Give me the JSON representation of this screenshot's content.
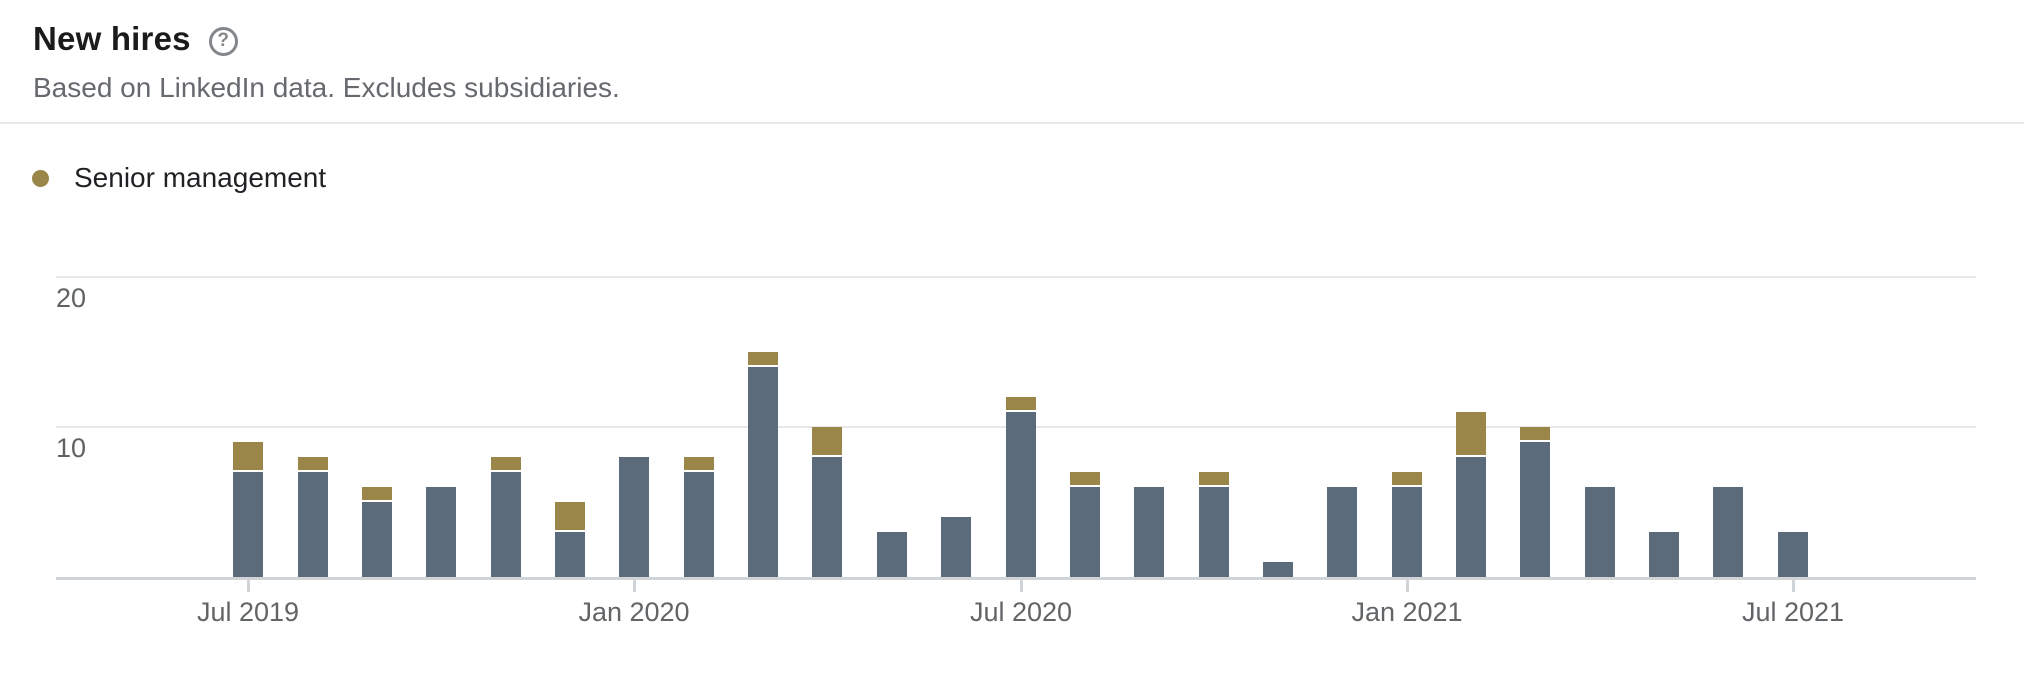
{
  "header": {
    "title": "New hires",
    "help_icon": "?",
    "subtitle": "Based on LinkedIn data. Excludes subsidiaries."
  },
  "legend": {
    "items": [
      {
        "label": "Senior management",
        "color": "#9a8648"
      }
    ]
  },
  "chart_data": {
    "type": "bar",
    "stacked": true,
    "title": "New hires",
    "categories": [
      "Jul 2019",
      "Aug 2019",
      "Sep 2019",
      "Oct 2019",
      "Nov 2019",
      "Dec 2019",
      "Jan 2020",
      "Feb 2020",
      "Mar 2020",
      "Apr 2020",
      "May 2020",
      "Jun 2020",
      "Jul 2020",
      "Aug 2020",
      "Sep 2020",
      "Oct 2020",
      "Nov 2020",
      "Dec 2020",
      "Jan 2021",
      "Feb 2021",
      "Mar 2021",
      "Apr 2021",
      "May 2021",
      "Jun 2021",
      "Jul 2021"
    ],
    "series": [
      {
        "name": "New hires (total bar height)",
        "color": "#5c6b7c",
        "values": [
          9,
          8,
          6,
          6,
          8,
          5,
          8,
          8,
          15,
          10,
          3,
          4,
          12,
          7,
          6,
          7,
          1,
          6,
          7,
          11,
          10,
          6,
          3,
          6,
          3
        ]
      },
      {
        "name": "Senior management",
        "color": "#9a8648",
        "values": [
          2,
          1,
          1,
          0,
          1,
          2,
          0,
          1,
          1,
          2,
          0,
          0,
          1,
          1,
          0,
          1,
          0,
          0,
          1,
          3,
          1,
          0,
          0,
          0,
          0
        ]
      }
    ],
    "y_axis": {
      "ticks": [
        10,
        20
      ],
      "min": 0,
      "max": 20,
      "grid": true
    },
    "x_axis": {
      "tick_labels": [
        "Jul 2019",
        "Jan 2020",
        "Jul 2020",
        "Jan 2021",
        "Jul 2021"
      ],
      "tick_indices": [
        0,
        6,
        12,
        18,
        24
      ]
    },
    "legend_position": "top-left",
    "colors": {
      "bar": "#5c6b7c",
      "senior": "#9a8648",
      "grid": "#e7e7e9",
      "axis": "#d1d4d7"
    }
  }
}
